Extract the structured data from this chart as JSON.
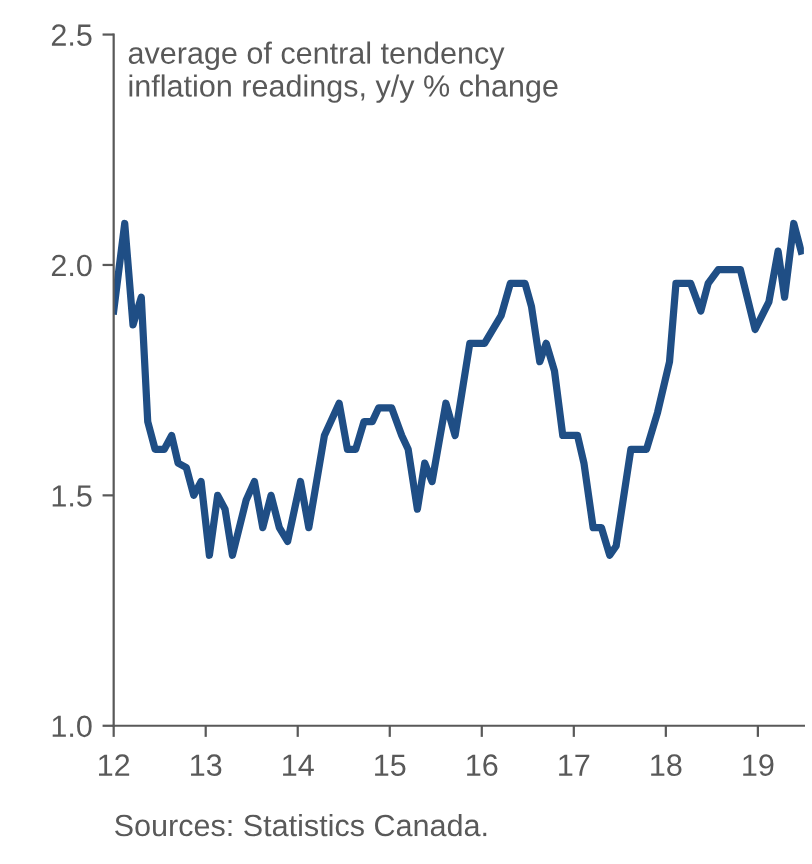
{
  "chart_data": {
    "type": "line",
    "annotations": [
      "average of central tendency inflation readings, y/y % change",
      "Sources: Statistics Canada."
    ],
    "series": [
      {
        "color": "#1f4e85",
        "x": [
          12.0,
          12.12,
          12.21,
          12.3,
          12.37,
          12.45,
          12.55,
          12.63,
          12.7,
          12.79,
          12.87,
          12.95,
          13.04,
          13.13,
          13.21,
          13.29,
          13.44,
          13.53,
          13.62,
          13.71,
          13.8,
          13.89,
          14.03,
          14.12,
          14.29,
          14.45,
          14.54,
          14.63,
          14.72,
          14.81,
          14.88,
          15.02,
          15.13,
          15.2,
          15.3,
          15.38,
          15.46,
          15.61,
          15.71,
          15.87,
          16.03,
          16.21,
          16.31,
          16.47,
          16.54,
          16.63,
          16.7,
          16.79,
          16.88,
          17.04,
          17.11,
          17.21,
          17.3,
          17.39,
          17.46,
          17.62,
          17.79,
          17.91,
          18.04,
          18.11,
          18.27,
          18.38,
          18.46,
          18.57,
          18.81,
          18.97,
          19.12,
          19.22,
          19.29,
          19.39,
          19.47
        ],
        "values": [
          1.9,
          2.09,
          1.87,
          1.93,
          1.66,
          1.6,
          1.6,
          1.63,
          1.57,
          1.56,
          1.5,
          1.53,
          1.37,
          1.5,
          1.47,
          1.37,
          1.49,
          1.53,
          1.43,
          1.5,
          1.43,
          1.4,
          1.53,
          1.43,
          1.63,
          1.7,
          1.6,
          1.6,
          1.66,
          1.66,
          1.69,
          1.69,
          1.63,
          1.6,
          1.47,
          1.57,
          1.53,
          1.7,
          1.63,
          1.83,
          1.83,
          1.89,
          1.96,
          1.96,
          1.91,
          1.79,
          1.83,
          1.77,
          1.63,
          1.63,
          1.57,
          1.43,
          1.43,
          1.37,
          1.39,
          1.6,
          1.6,
          1.68,
          1.79,
          1.96,
          1.96,
          1.9,
          1.96,
          1.99,
          1.99,
          1.86,
          1.92,
          2.03,
          1.93,
          2.09,
          2.03
        ]
      }
    ],
    "xlim": [
      12,
      19.5
    ],
    "xticks": [
      12,
      13,
      14,
      15,
      16,
      17,
      18,
      19
    ],
    "ylim": [
      1,
      2.5
    ],
    "yticks": [
      {
        "value": 1,
        "label": "1.0"
      },
      {
        "value": 1.5,
        "label": "1.5"
      },
      {
        "value": 2,
        "label": "2.0"
      },
      {
        "value": 2.5,
        "label": "2.5"
      }
    ],
    "grid": false,
    "legend": false,
    "marker": "none",
    "line_style": "solid"
  }
}
